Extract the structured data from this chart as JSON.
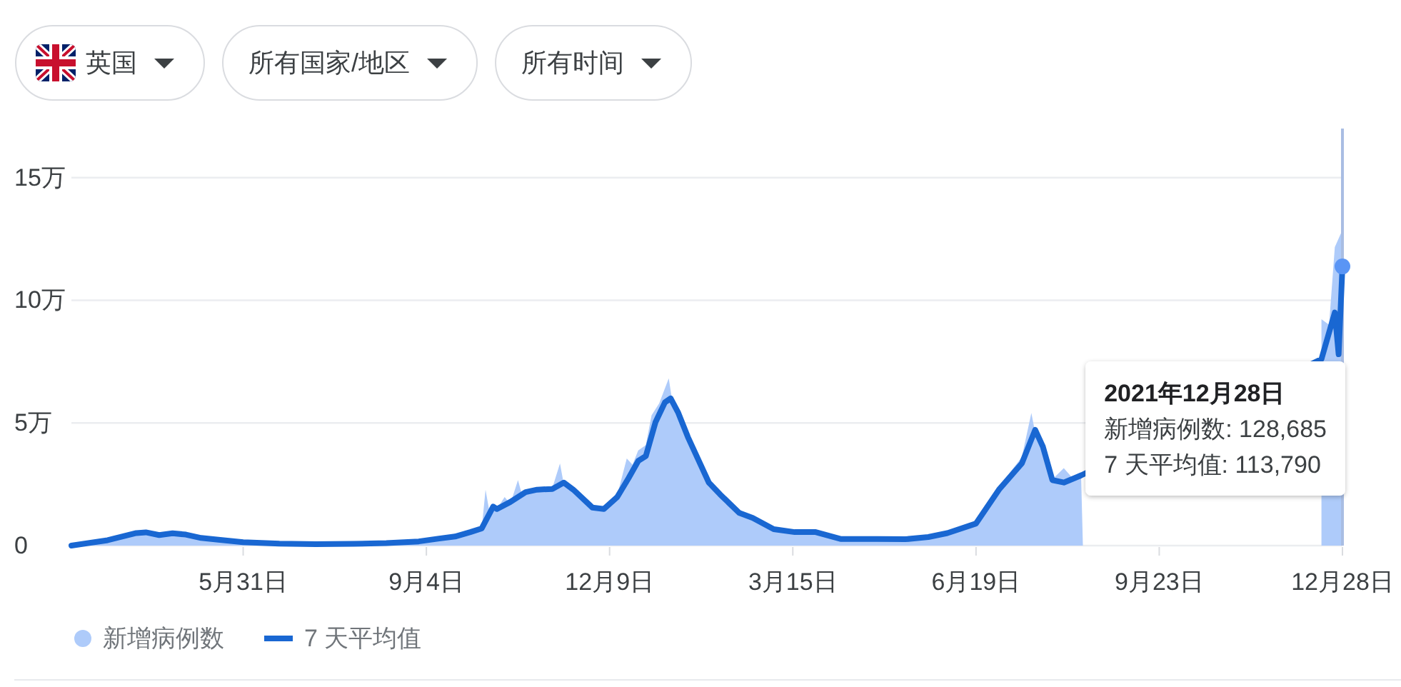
{
  "chart_data": {
    "type": "line",
    "xlim": [
      "2020-03-02",
      "2021-12-28"
    ],
    "ylim": [
      0,
      17
    ],
    "xticks": [
      {
        "value": "2020-05-31",
        "label": "5月31日"
      },
      {
        "value": "2020-09-04",
        "label": "9月4日"
      },
      {
        "value": "2020-12-09",
        "label": "12月9日"
      },
      {
        "value": "2021-03-15",
        "label": "3月15日"
      },
      {
        "value": "2021-06-19",
        "label": "6月19日"
      },
      {
        "value": "2021-09-23",
        "label": "9月23日"
      },
      {
        "value": "2021-12-28",
        "label": "12月28日"
      }
    ],
    "yticks": [
      0,
      {
        "value": 5,
        "label": "5万"
      },
      {
        "value": 10,
        "label": "10万"
      },
      {
        "value": 15,
        "label": "15万"
      }
    ],
    "grid": "y",
    "legend": "bottom",
    "series": [
      {
        "name": "新增病例数",
        "type": "area",
        "color": "#aecbfa",
        "x": [
          "2020-03-02",
          "2020-03-21",
          "2020-04-05",
          "2020-04-10",
          "2020-04-18",
          "2020-04-24",
          "2020-05-01",
          "2020-05-09",
          "2020-05-18",
          "2020-05-31",
          "2020-06-19",
          "2020-07-08",
          "2020-07-28",
          "2020-08-14",
          "2020-08-31",
          "2020-09-10",
          "2020-09-19",
          "2020-09-27",
          "2020-10-03",
          "2020-10-05",
          "2020-10-07",
          "2020-10-11",
          "2020-10-15",
          "2020-10-18",
          "2020-10-22",
          "2020-10-24",
          "2020-11-01",
          "2020-11-09",
          "2020-11-13",
          "2020-11-15",
          "2020-11-20",
          "2020-11-30",
          "2020-12-06",
          "2020-12-13",
          "2020-12-18",
          "2020-12-21",
          "2020-12-24",
          "2020-12-28",
          "2020-12-31",
          "2021-01-04",
          "2021-01-09",
          "2021-01-11",
          "2021-01-14",
          "2021-01-19",
          "2021-01-30",
          "2021-02-05",
          "2021-02-15",
          "2021-02-22",
          "2021-03-05",
          "2021-03-16",
          "2021-03-27",
          "2021-04-09",
          "2021-04-28",
          "2021-05-13",
          "2021-05-25",
          "2021-06-04",
          "2021-06-19",
          "2021-07-01",
          "2021-07-13",
          "2021-07-18",
          "2021-07-20",
          "2021-07-24",
          "2021-07-29",
          "2021-08-04",
          "2021-08-08",
          "2021-08-13",
          "2021-08-14",
          "2021-12-17",
          "2021-12-21",
          "2021-12-24",
          "2021-12-28"
        ],
        "values": [
          0,
          0.25,
          0.55,
          0.58,
          0.45,
          0.55,
          0.48,
          0.32,
          0.25,
          0.15,
          0.09,
          0.06,
          0.08,
          0.11,
          0.18,
          0.3,
          0.42,
          0.6,
          0.7,
          2.28,
          1.4,
          1.5,
          1.98,
          1.7,
          2.67,
          2.1,
          2.3,
          2.35,
          3.35,
          2.5,
          2.2,
          1.5,
          1.55,
          2.05,
          3.55,
          3.3,
          3.88,
          4.1,
          5.31,
          5.8,
          6.82,
          5.8,
          5.6,
          4.3,
          2.4,
          2.1,
          1.3,
          1.1,
          0.65,
          0.56,
          0.53,
          0.28,
          0.25,
          0.27,
          0.32,
          0.55,
          1.0,
          2.4,
          3.6,
          5.41,
          4.6,
          3.9,
          2.7,
          3.16,
          2.8,
          3.0,
          null,
          9.23,
          9.0,
          12.17,
          12.8685
        ]
      },
      {
        "name": "7 天平均值",
        "color": "#1967d2",
        "line_style": "solid",
        "x": [
          "2020-03-02",
          "2020-03-21",
          "2020-04-05",
          "2020-04-10",
          "2020-04-17",
          "2020-04-24",
          "2020-05-01",
          "2020-05-09",
          "2020-05-18",
          "2020-05-31",
          "2020-06-19",
          "2020-07-08",
          "2020-07-28",
          "2020-08-14",
          "2020-08-31",
          "2020-09-10",
          "2020-09-19",
          "2020-09-27",
          "2020-10-03",
          "2020-10-09",
          "2020-10-11",
          "2020-10-18",
          "2020-10-26",
          "2020-11-01",
          "2020-11-09",
          "2020-11-15",
          "2020-11-20",
          "2020-11-30",
          "2020-12-06",
          "2020-12-13",
          "2020-12-19",
          "2020-12-24",
          "2020-12-28",
          "2021-01-02",
          "2021-01-07",
          "2021-01-10",
          "2021-01-14",
          "2021-01-19",
          "2021-01-30",
          "2021-02-05",
          "2021-02-15",
          "2021-02-22",
          "2021-03-05",
          "2021-03-16",
          "2021-03-27",
          "2021-04-09",
          "2021-04-28",
          "2021-05-13",
          "2021-05-25",
          "2021-06-04",
          "2021-06-19",
          "2021-07-01",
          "2021-07-13",
          "2021-07-20",
          "2021-07-24",
          "2021-07-29",
          "2021-08-04",
          "2021-08-13",
          "2021-12-17",
          "2021-12-24",
          "2021-12-26",
          "2021-12-28"
        ],
        "values": [
          0,
          0.22,
          0.51,
          0.54,
          0.43,
          0.5,
          0.45,
          0.31,
          0.24,
          0.14,
          0.08,
          0.06,
          0.07,
          0.1,
          0.17,
          0.28,
          0.37,
          0.55,
          0.7,
          1.59,
          1.49,
          1.78,
          2.18,
          2.28,
          2.31,
          2.57,
          2.28,
          1.55,
          1.49,
          1.98,
          2.76,
          3.45,
          3.65,
          5.02,
          5.84,
          6.0,
          5.41,
          4.43,
          2.57,
          2.08,
          1.33,
          1.13,
          0.67,
          0.55,
          0.55,
          0.27,
          0.27,
          0.26,
          0.35,
          0.51,
          0.9,
          2.28,
          3.35,
          4.72,
          4.04,
          2.67,
          2.57,
          2.86,
          7.6,
          9.5,
          7.8,
          11.379
        ]
      },
      {
        "type": "scatter",
        "marker": "circle",
        "color": "#5a95f5",
        "x": [
          "2021-12-28"
        ],
        "values": [
          11.379
        ]
      }
    ],
    "ref_lines": [
      {
        "axis": "x",
        "value": "2021-12-28",
        "color": "#a9bde3"
      }
    ],
    "annotations": [
      "英国",
      "所有国家/地区",
      "所有时间",
      "2021年12月28日",
      "新增病例数: 128,685",
      "7 天平均值: 113,790"
    ]
  }
}
